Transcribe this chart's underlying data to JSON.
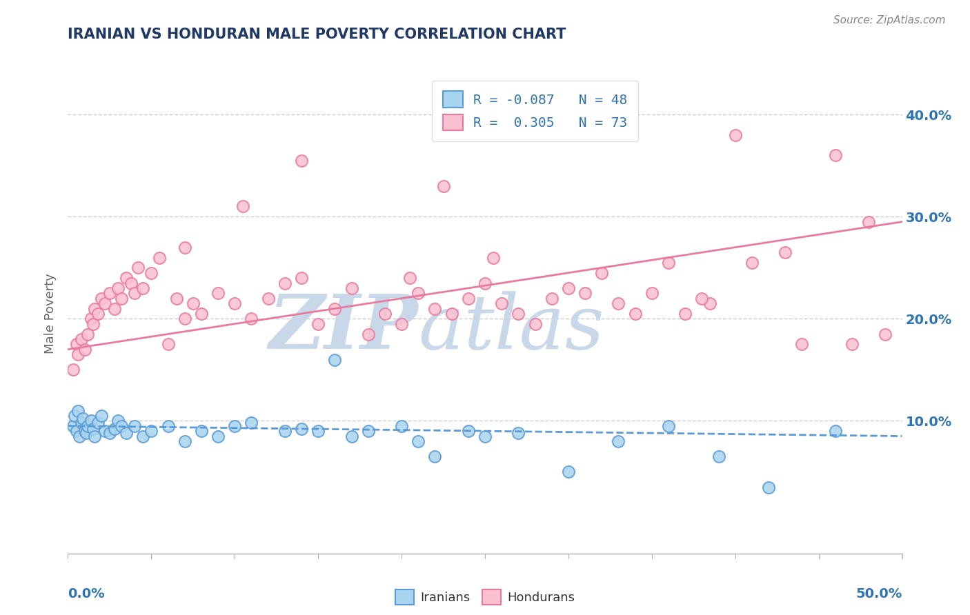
{
  "title": "IRANIAN VS HONDURAN MALE POVERTY CORRELATION CHART",
  "source_text": "Source: ZipAtlas.com",
  "ylabel": "Male Poverty",
  "xlim": [
    0,
    50
  ],
  "ylim": [
    -3,
    44
  ],
  "ytick_vals": [
    10,
    20,
    30,
    40
  ],
  "ytick_labels": [
    "10.0%",
    "20.0%",
    "30.0%",
    "40.0%"
  ],
  "legend_r_iranian": "-0.087",
  "legend_n_iranian": "48",
  "legend_r_honduran": "0.305",
  "legend_n_honduran": "73",
  "color_iranian_fill": "#a8d4ee",
  "color_iranian_edge": "#5b9bd5",
  "color_honduran_fill": "#f9c0d0",
  "color_honduran_edge": "#e87aa0",
  "color_line_iranian": "#5b9bd5",
  "color_line_honduran": "#e87aa0",
  "title_color": "#1f3864",
  "axis_label_color": "#2e74b5",
  "watermark_zip": "ZIP",
  "watermark_atlas": "atlas",
  "watermark_color": "#c8d8e8",
  "source_color": "#888888",
  "background_color": "#ffffff",
  "grid_color": "#cccccc",
  "iran_line_start_y": 9.5,
  "iran_line_end_y": 8.5,
  "hond_line_start_y": 17.0,
  "hond_line_end_y": 29.5,
  "iranians_x": [
    0.3,
    0.4,
    0.5,
    0.6,
    0.7,
    0.8,
    0.9,
    1.0,
    1.1,
    1.2,
    1.4,
    1.5,
    1.6,
    1.8,
    2.0,
    2.2,
    2.5,
    2.8,
    3.0,
    3.2,
    3.5,
    4.0,
    4.5,
    5.0,
    6.0,
    7.0,
    8.0,
    9.0,
    10.0,
    11.0,
    13.0,
    14.0,
    15.0,
    16.0,
    17.0,
    18.0,
    20.0,
    21.0,
    22.0,
    24.0,
    25.0,
    27.0,
    30.0,
    33.0,
    36.0,
    39.0,
    42.0,
    46.0
  ],
  "iranians_y": [
    9.5,
    10.5,
    9.0,
    11.0,
    8.5,
    9.8,
    10.2,
    9.0,
    8.8,
    9.5,
    10.0,
    9.2,
    8.5,
    9.8,
    10.5,
    9.0,
    8.8,
    9.2,
    10.0,
    9.5,
    8.8,
    9.5,
    8.5,
    9.0,
    9.5,
    8.0,
    9.0,
    8.5,
    9.5,
    9.8,
    9.0,
    9.2,
    9.0,
    16.0,
    8.5,
    9.0,
    9.5,
    8.0,
    6.5,
    9.0,
    8.5,
    8.8,
    5.0,
    8.0,
    9.5,
    6.5,
    3.5,
    9.0
  ],
  "hondurans_x": [
    0.3,
    0.5,
    0.6,
    0.8,
    1.0,
    1.2,
    1.4,
    1.5,
    1.6,
    1.8,
    2.0,
    2.2,
    2.5,
    2.8,
    3.0,
    3.2,
    3.5,
    3.8,
    4.0,
    4.2,
    4.5,
    5.0,
    5.5,
    6.0,
    6.5,
    7.0,
    7.5,
    8.0,
    9.0,
    10.0,
    11.0,
    12.0,
    13.0,
    14.0,
    15.0,
    16.0,
    17.0,
    18.0,
    19.0,
    20.0,
    21.0,
    22.0,
    23.0,
    24.0,
    25.0,
    26.0,
    27.0,
    28.0,
    29.0,
    30.0,
    31.0,
    32.0,
    33.0,
    34.0,
    35.0,
    36.0,
    37.0,
    38.5,
    40.0,
    41.0,
    43.0,
    44.0,
    46.0,
    48.0,
    49.0,
    22.5,
    7.0,
    10.5,
    14.0,
    20.5,
    25.5,
    38.0,
    47.0
  ],
  "hondurans_y": [
    15.0,
    17.5,
    16.5,
    18.0,
    17.0,
    18.5,
    20.0,
    19.5,
    21.0,
    20.5,
    22.0,
    21.5,
    22.5,
    21.0,
    23.0,
    22.0,
    24.0,
    23.5,
    22.5,
    25.0,
    23.0,
    24.5,
    26.0,
    17.5,
    22.0,
    20.0,
    21.5,
    20.5,
    22.5,
    21.5,
    20.0,
    22.0,
    23.5,
    24.0,
    19.5,
    21.0,
    23.0,
    18.5,
    20.5,
    19.5,
    22.5,
    21.0,
    20.5,
    22.0,
    23.5,
    21.5,
    20.5,
    19.5,
    22.0,
    23.0,
    22.5,
    24.5,
    21.5,
    20.5,
    22.5,
    25.5,
    20.5,
    21.5,
    38.0,
    25.5,
    26.5,
    17.5,
    36.0,
    29.5,
    18.5,
    33.0,
    27.0,
    31.0,
    35.5,
    24.0,
    26.0,
    22.0,
    17.5
  ]
}
